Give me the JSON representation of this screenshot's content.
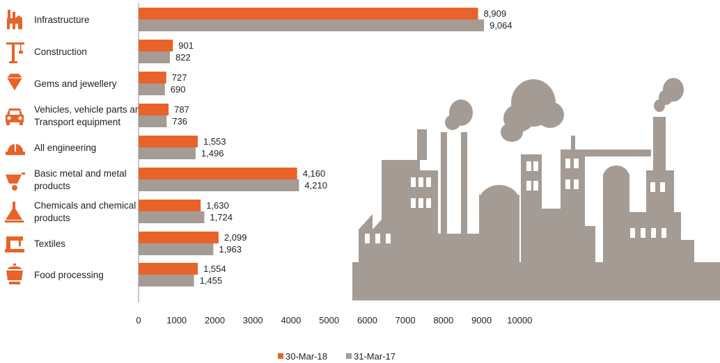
{
  "chart_data": {
    "type": "bar",
    "orientation": "horizontal",
    "categories": [
      "Infrastructure",
      "Construction",
      "Gems and jewellery",
      "Vehicles, vehicle parts and Transport equipment",
      "All engineering",
      "Basic metal and metal products",
      "Chemicals and chemical products",
      "Textiles",
      "Food processing"
    ],
    "category_lines": [
      [
        "Infrastructure"
      ],
      [
        "Construction"
      ],
      [
        "Gems and jewellery"
      ],
      [
        "Vehicles, vehicle parts and",
        "Transport equipment"
      ],
      [
        "All engineering"
      ],
      [
        "Basic metal and metal",
        "products"
      ],
      [
        "Chemicals and chemical",
        "products"
      ],
      [
        "Textiles"
      ],
      [
        "Food processing"
      ]
    ],
    "icons": [
      "factory-icon",
      "crane-icon",
      "diamond-icon",
      "car-icon",
      "hardhat-icon",
      "wheelbarrow-icon",
      "flask-icon",
      "sewing-machine-icon",
      "cooking-pot-icon"
    ],
    "series": [
      {
        "name": "30-Mar-18",
        "color": "#e8632a",
        "values": [
          8909,
          901,
          727,
          787,
          1553,
          4160,
          1630,
          2099,
          1554
        ],
        "labels": [
          "8,909",
          "901",
          "727",
          "787",
          "1,553",
          "4,160",
          "1,630",
          "2,099",
          "1,554"
        ]
      },
      {
        "name": "31-Mar-17",
        "color": "#a39b94",
        "values": [
          9064,
          822,
          690,
          736,
          1496,
          4210,
          1724,
          1963,
          1455
        ],
        "labels": [
          "9,064",
          "822",
          "690",
          "736",
          "1,496",
          "4,210",
          "1,724",
          "1,963",
          "1,455"
        ]
      }
    ],
    "xlim": [
      0,
      10000
    ],
    "xticks": [
      0,
      1000,
      2000,
      3000,
      4000,
      5000,
      6000,
      7000,
      8000,
      9000,
      10000
    ],
    "xtick_labels": [
      "0",
      "1000",
      "2000",
      "3000",
      "4000",
      "5000",
      "6000",
      "7000",
      "8000",
      "9000",
      "10000"
    ],
    "title": "",
    "xlabel": "",
    "ylabel": "",
    "grid": false,
    "legend_position": "bottom-center",
    "icon_color": "#e8632a",
    "illustration": "factory-skyline",
    "illustration_color": "#a39b94"
  }
}
